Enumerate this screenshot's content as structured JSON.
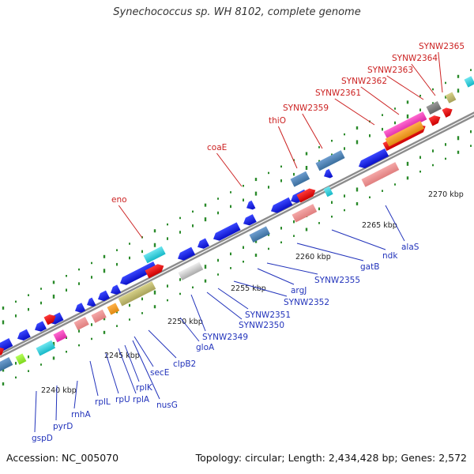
{
  "title": "Synechococcus sp. WH 8102, complete genome",
  "footer": {
    "accession": "Accession: NC_005070",
    "summary": "Topology: circular; Length: 2,434,428 bp; Genes: 2,572"
  },
  "colors": {
    "backbone": "#8c8c8c",
    "tick": "#2a8a2a",
    "label_blue": "#2233bb",
    "label_red": "#cc2222",
    "scale_text": "#222222"
  },
  "scale": [
    {
      "label": "2240 kbp"
    },
    {
      "label": "2245 kbp"
    },
    {
      "label": "2250 kbp"
    },
    {
      "label": "2255 kbp"
    },
    {
      "label": "2260 kbp"
    },
    {
      "label": "2265 kbp"
    },
    {
      "label": "2270 kbp"
    }
  ],
  "gene_labels": [
    {
      "text": "gspD"
    },
    {
      "text": "pyrD"
    },
    {
      "text": "rnhA"
    },
    {
      "text": "rplL"
    },
    {
      "text": "rpU"
    },
    {
      "text": "rplA"
    },
    {
      "text": "rplK"
    },
    {
      "text": "nusG"
    },
    {
      "text": "secE"
    },
    {
      "text": "clpB2"
    },
    {
      "text": "gloA"
    },
    {
      "text": "SYNW2349"
    },
    {
      "text": "SYNW2350"
    },
    {
      "text": "SYNW2351"
    },
    {
      "text": "SYNW2352"
    },
    {
      "text": "argJ"
    },
    {
      "text": "SYNW2355"
    },
    {
      "text": "gatB"
    },
    {
      "text": "ndk"
    },
    {
      "text": "alaS"
    },
    {
      "text": "eno"
    },
    {
      "text": "coaE"
    },
    {
      "text": "thiO"
    },
    {
      "text": "SYNW2359"
    },
    {
      "text": "SYNW2361"
    },
    {
      "text": "SYNW2362"
    },
    {
      "text": "SYNW2363"
    },
    {
      "text": "SYNW2364"
    },
    {
      "text": "SYNW2365"
    }
  ]
}
